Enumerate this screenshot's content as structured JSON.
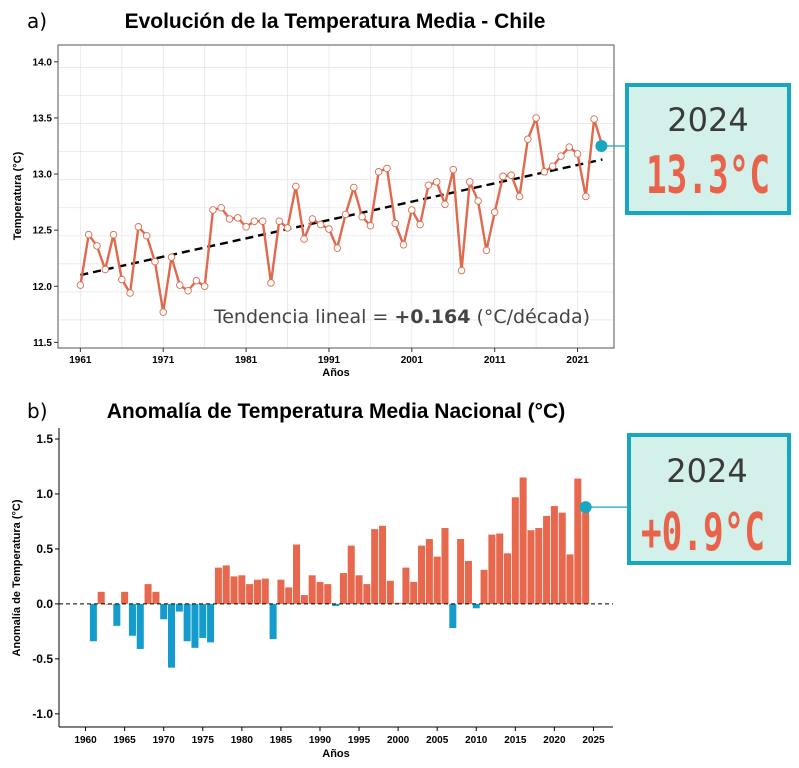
{
  "colors": {
    "line": "#e0694e",
    "bar_pos": "#e8684e",
    "bar_neg": "#149ccc",
    "box_border": "#17a7bf",
    "box_fill": "#d4f0ea",
    "grid": "#e6e6e6"
  },
  "chart_data": [
    {
      "type": "line",
      "panel_label": "a)",
      "title": "Evolución de la Temperatura Media - Chile",
      "xlabel": "Años",
      "ylabel": "Temperatura (°C)",
      "xlim": [
        1958.3,
        2025.4
      ],
      "ylim": [
        11.45,
        14.15
      ],
      "xticks": [
        1961,
        1971,
        1981,
        1991,
        2001,
        2011,
        2021
      ],
      "yticks": [
        11.5,
        12.0,
        12.5,
        13.0,
        13.5,
        14.0
      ],
      "ytick_labels": [
        "11.5",
        "12.0",
        "12.5",
        "13.0",
        "13.5",
        "14.0"
      ],
      "grid": true,
      "x": [
        1961,
        1962,
        1963,
        1964,
        1965,
        1966,
        1967,
        1968,
        1969,
        1970,
        1971,
        1972,
        1973,
        1974,
        1975,
        1976,
        1977,
        1978,
        1979,
        1980,
        1981,
        1982,
        1983,
        1984,
        1985,
        1986,
        1987,
        1988,
        1989,
        1990,
        1991,
        1992,
        1993,
        1994,
        1995,
        1996,
        1997,
        1998,
        1999,
        2000,
        2001,
        2002,
        2003,
        2004,
        2005,
        2006,
        2007,
        2008,
        2009,
        2010,
        2011,
        2012,
        2013,
        2014,
        2015,
        2016,
        2017,
        2018,
        2019,
        2020,
        2021,
        2022,
        2023,
        2024
      ],
      "y": [
        12.01,
        12.46,
        12.36,
        12.15,
        12.46,
        12.06,
        11.94,
        12.53,
        12.45,
        12.22,
        11.77,
        12.26,
        12.01,
        11.96,
        12.05,
        12.0,
        12.68,
        12.7,
        12.6,
        12.61,
        12.53,
        12.58,
        12.58,
        12.03,
        12.58,
        12.52,
        12.89,
        12.42,
        12.6,
        12.55,
        12.51,
        12.34,
        12.64,
        12.88,
        12.62,
        12.54,
        13.02,
        13.05,
        12.56,
        12.37,
        12.68,
        12.55,
        12.9,
        12.93,
        12.73,
        13.04,
        12.14,
        12.93,
        12.76,
        12.32,
        12.66,
        12.98,
        12.99,
        12.8,
        13.31,
        13.5,
        13.02,
        13.07,
        13.16,
        13.24,
        13.18,
        12.8,
        13.49,
        13.25
      ],
      "trend": {
        "x0": 1961,
        "y0": 12.1,
        "x1": 2024,
        "y1": 13.13
      },
      "trend_label": "Tendencia lineal = ",
      "trend_value": "+0.164",
      "trend_unit": " (°C/década)",
      "callout": {
        "year": "2024",
        "value": "13.3°C",
        "x": 2024,
        "y": 13.25
      }
    },
    {
      "type": "bar",
      "panel_label": "b)",
      "title": "Anomalía de Temperatura Media Nacional (°C)",
      "xlabel": "Años",
      "ylabel": "Anomalía de Temperatura (°C)",
      "xlim": [
        1956.6,
        2027.5
      ],
      "ylim": [
        -1.12,
        1.6
      ],
      "xticks": [
        1960,
        1965,
        1970,
        1975,
        1980,
        1985,
        1990,
        1995,
        2000,
        2005,
        2010,
        2015,
        2020,
        2025
      ],
      "yticks": [
        -1.0,
        -0.5,
        0.0,
        0.5,
        1.0,
        1.5
      ],
      "ytick_labels": [
        "-1.0",
        "-0.5",
        "0.0",
        "0.5",
        "1.0",
        "1.5"
      ],
      "grid": false,
      "x": [
        1961,
        1962,
        1963,
        1964,
        1965,
        1966,
        1967,
        1968,
        1969,
        1970,
        1971,
        1972,
        1973,
        1974,
        1975,
        1976,
        1977,
        1978,
        1979,
        1980,
        1981,
        1982,
        1983,
        1984,
        1985,
        1986,
        1987,
        1988,
        1989,
        1990,
        1991,
        1992,
        1993,
        1994,
        1995,
        1996,
        1997,
        1998,
        1999,
        2000,
        2001,
        2002,
        2003,
        2004,
        2005,
        2006,
        2007,
        2008,
        2009,
        2010,
        2011,
        2012,
        2013,
        2014,
        2015,
        2016,
        2017,
        2018,
        2019,
        2020,
        2021,
        2022,
        2023,
        2024
      ],
      "values": [
        -0.34,
        0.11,
        0.0,
        -0.2,
        0.11,
        -0.29,
        -0.41,
        0.18,
        0.11,
        -0.14,
        -0.58,
        -0.07,
        -0.34,
        -0.4,
        -0.31,
        -0.35,
        0.33,
        0.35,
        0.25,
        0.26,
        0.18,
        0.22,
        0.23,
        -0.32,
        0.22,
        0.15,
        0.54,
        0.08,
        0.26,
        0.2,
        0.18,
        -0.02,
        0.28,
        0.53,
        0.26,
        0.18,
        0.68,
        0.71,
        0.21,
        0.01,
        0.33,
        0.2,
        0.53,
        0.59,
        0.43,
        0.69,
        -0.22,
        0.59,
        0.39,
        -0.04,
        0.31,
        0.63,
        0.64,
        0.46,
        0.97,
        1.15,
        0.67,
        0.69,
        0.8,
        0.89,
        0.83,
        0.45,
        1.14,
        0.88
      ],
      "callout": {
        "year": "2024",
        "value": "+0.9°C",
        "x": 2024,
        "y": 0.88
      }
    }
  ]
}
